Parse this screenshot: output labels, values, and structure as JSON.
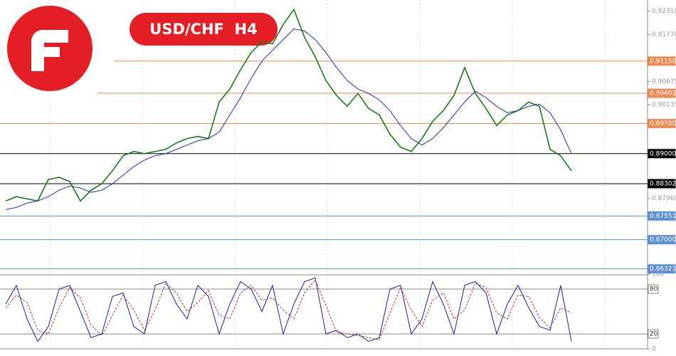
{
  "chart_data": [
    {
      "type": "line",
      "title": "USD/CHF  H4",
      "ylim": [
        0.862,
        0.9257
      ],
      "yticks": [
        {
          "value": 0.9231,
          "label": "0.92310"
        },
        {
          "value": 0.9177,
          "label": "0.91770"
        },
        {
          "value": 0.90675,
          "label": "0.90675"
        },
        {
          "value": 0.90135,
          "label": "0.90135"
        },
        {
          "value": 0.8796,
          "label": "0.87960"
        }
      ],
      "levels": [
        {
          "value": 0.9115,
          "label": "0.91150",
          "color": "#f08a50"
        },
        {
          "value": 0.90402,
          "label": "0.90402",
          "color": "#f08a50"
        },
        {
          "value": 0.897,
          "label": "0.89700",
          "color": "#f08a50"
        },
        {
          "value": 0.89,
          "label": "0.89000",
          "color": "#000000"
        },
        {
          "value": 0.88302,
          "label": "0.88302",
          "color": "#000000"
        },
        {
          "value": 0.87551,
          "label": "0.87551",
          "color": "#5b8fd6"
        },
        {
          "value": 0.87,
          "label": "0.87000",
          "color": "#5b8fd6"
        },
        {
          "value": 0.86321,
          "label": "0.86321",
          "color": "#5b8fd6"
        }
      ],
      "series": [
        {
          "color": "#1a7a1a",
          "values": [
            0.879,
            0.88,
            0.8795,
            0.879,
            0.884,
            0.8845,
            0.8835,
            0.879,
            0.8815,
            0.883,
            0.886,
            0.8895,
            0.8905,
            0.89,
            0.8905,
            0.891,
            0.8925,
            0.8935,
            0.894,
            0.8935,
            0.902,
            0.905,
            0.9095,
            0.9135,
            0.916,
            0.9155,
            0.92,
            0.9235,
            0.917,
            0.9125,
            0.907,
            0.9035,
            0.901,
            0.904,
            0.9005,
            0.899,
            0.8945,
            0.8915,
            0.8905,
            0.8935,
            0.8975,
            0.9,
            0.9035,
            0.91,
            0.904,
            0.9005,
            0.8965,
            0.899,
            0.9,
            0.902,
            0.901,
            0.891,
            0.8895,
            0.886
          ]
        },
        {
          "color": "#2030b0",
          "values": [
            0.877,
            0.8775,
            0.8785,
            0.879,
            0.88,
            0.8815,
            0.8825,
            0.882,
            0.881,
            0.8815,
            0.883,
            0.885,
            0.887,
            0.8885,
            0.8895,
            0.89,
            0.891,
            0.892,
            0.893,
            0.8935,
            0.895,
            0.899,
            0.903,
            0.9075,
            0.9115,
            0.914,
            0.9165,
            0.919,
            0.9185,
            0.9165,
            0.9135,
            0.91,
            0.907,
            0.905,
            0.904,
            0.9025,
            0.9,
            0.8965,
            0.8935,
            0.892,
            0.8935,
            0.896,
            0.899,
            0.902,
            0.9045,
            0.903,
            0.901,
            0.8995,
            0.9,
            0.901,
            0.9015,
            0.8995,
            0.8955,
            0.89
          ]
        }
      ]
    },
    {
      "type": "line",
      "ylim": [
        0,
        100
      ],
      "yticks": [
        100,
        0
      ],
      "levels": [
        80,
        20
      ],
      "series": [
        {
          "color": "#2020a0",
          "values": [
            60,
            85,
            40,
            10,
            30,
            80,
            85,
            50,
            15,
            20,
            70,
            75,
            30,
            20,
            85,
            90,
            60,
            40,
            85,
            70,
            20,
            60,
            90,
            80,
            50,
            85,
            20,
            60,
            90,
            95,
            20,
            25,
            15,
            20,
            10,
            15,
            80,
            85,
            20,
            40,
            90,
            60,
            20,
            85,
            90,
            75,
            20,
            60,
            85,
            55,
            30,
            25,
            85,
            10
          ]
        },
        {
          "color": "#c03030",
          "values": [
            55,
            72,
            62,
            25,
            20,
            55,
            82,
            68,
            32,
            18,
            45,
            72,
            52,
            25,
            52,
            88,
            75,
            50,
            62,
            78,
            45,
            40,
            75,
            85,
            65,
            68,
            52,
            40,
            75,
            92,
            58,
            22,
            20,
            18,
            15,
            12,
            48,
            82,
            52,
            30,
            65,
            75,
            40,
            52,
            88,
            82,
            48,
            40,
            72,
            70,
            42,
            28,
            55,
            48
          ]
        }
      ]
    }
  ]
}
